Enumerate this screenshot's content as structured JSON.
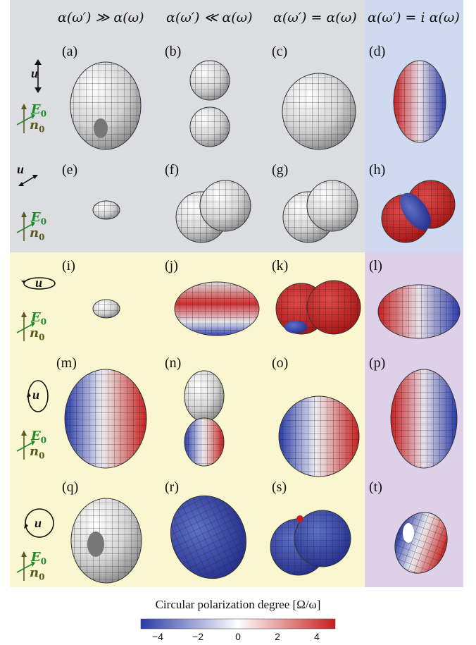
{
  "columns": [
    "α(ω′) ≫ α(ω)",
    "α(ω′) ≪ α(ω)",
    "α(ω′) = α(ω)",
    "α(ω′) = i α(ω)"
  ],
  "panels": [
    "(a)",
    "(b)",
    "(c)",
    "(d)",
    "(e)",
    "(f)",
    "(g)",
    "(h)",
    "(i)",
    "(j)",
    "(k)",
    "(l)",
    "(m)",
    "(n)",
    "(o)",
    "(p)",
    "(q)",
    "(r)",
    "(s)",
    "(t)"
  ],
  "row_labels": {
    "u": "u",
    "E0": "E",
    "E0_sub": "0",
    "n0": "n",
    "n0_sub": "0"
  },
  "colorbar": {
    "title": "Circular polarization degree [Ω/ω]",
    "ticks": [
      "−4",
      "−2",
      "0",
      "2",
      "4"
    ],
    "colors": {
      "negative": "#2a3aa8",
      "zero": "#ffffff",
      "positive": "#c81e1e"
    }
  },
  "colors": {
    "grey_bg": "#dcdde0",
    "blue_bg": "#cfdaf0",
    "yellow_bg": "#faf6cf",
    "purple_bg": "#ddd0e8",
    "label_green": "#1c8a2e",
    "label_olive": "#5a5a1e"
  }
}
